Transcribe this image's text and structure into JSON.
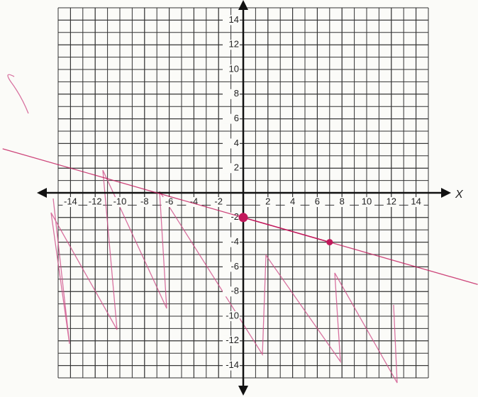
{
  "chart_data": {
    "type": "line",
    "x_label": "X",
    "x": [
      0,
      7
    ],
    "series": [
      {
        "color": "#c2185b",
        "values": [
          -2,
          -4
        ]
      }
    ],
    "xlim": [
      -15,
      15
    ],
    "ylim": [
      -15,
      15
    ],
    "xticks": [
      -14,
      -12,
      -10,
      -8,
      -6,
      -4,
      -2,
      2,
      4,
      6,
      8,
      10,
      12,
      14
    ],
    "yticks": [
      -14,
      -12,
      -10,
      -8,
      -6,
      -4,
      -2,
      2,
      4,
      6,
      8,
      10,
      12,
      14
    ],
    "grid": true
  }
}
